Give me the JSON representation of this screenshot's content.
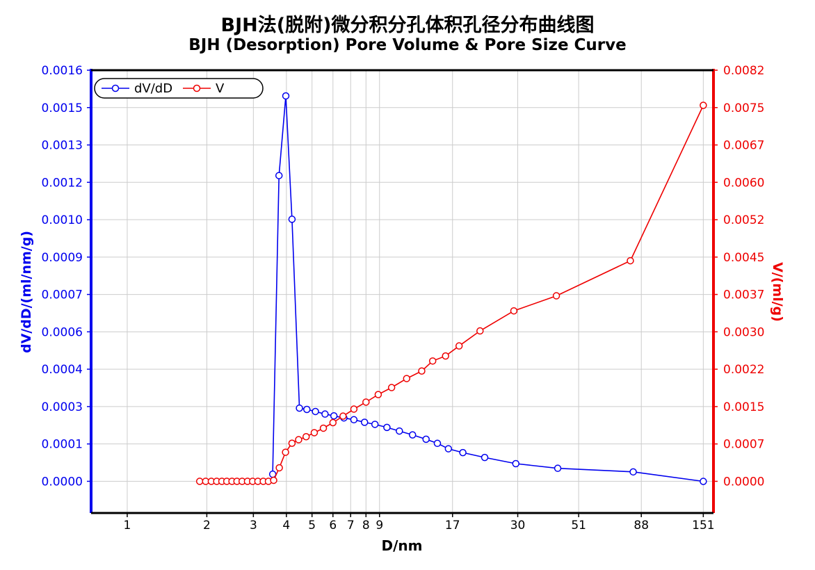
{
  "chart_data": {
    "type": "line",
    "title": "BJH法(脱附)微分积分孔体积孔径分布曲线图",
    "subtitle": "BJH (Desorption) Pore Volume & Pore Size Curve",
    "xlabel": "D/nm",
    "ylabel_left": "dV/dD/(ml/nm/g)",
    "ylabel_right": "V/(ml/g)",
    "x_scale": "log",
    "x_ticks": [
      "1",
      "2",
      "3",
      "4",
      "5",
      "6",
      "7",
      "8",
      "9",
      "17",
      "30",
      "51",
      "88",
      "151"
    ],
    "x_tick_values": [
      1,
      2,
      3,
      4,
      5,
      6,
      7,
      8,
      9,
      17,
      30,
      51,
      88,
      151
    ],
    "xlim": [
      0.73,
      165
    ],
    "y_left_ticks": [
      "0.0000",
      "0.0001",
      "0.0003",
      "0.0004",
      "0.0006",
      "0.0007",
      "0.0009",
      "0.0010",
      "0.0012",
      "0.0013",
      "0.0015",
      "0.0016"
    ],
    "y_left_lim": [
      -0.000123,
      0.0016
    ],
    "y_right_ticks": [
      "0.0000",
      "0.0007",
      "0.0015",
      "0.0022",
      "0.0030",
      "0.0037",
      "0.0045",
      "0.0052",
      "0.0060",
      "0.0067",
      "0.0075",
      "0.0082"
    ],
    "y_right_lim": [
      -0.000632,
      0.0082
    ],
    "grid": true,
    "legend_position": "top-left",
    "colors": {
      "left_axis": "#0000ee",
      "right_axis": "#ee0000",
      "dvdd": "#0000ee",
      "v": "#ee0000",
      "grid": "#cccccc"
    },
    "series": [
      {
        "name": "dV/dD",
        "axis": "left",
        "x": [
          3.55,
          3.75,
          3.98,
          4.2,
          4.48,
          4.78,
          5.15,
          5.6,
          6.05,
          6.6,
          7.2,
          7.9,
          8.65,
          9.6,
          10.7,
          12.0,
          13.5,
          14.9,
          16.4,
          18.6,
          22.5,
          29.5,
          42.5,
          82,
          151
        ],
        "y": [
          2.8e-05,
          0.00119,
          0.0015,
          0.00102,
          0.000285,
          0.00028,
          0.000272,
          0.000262,
          0.000255,
          0.000247,
          0.00024,
          0.00023,
          0.000222,
          0.00021,
          0.000196,
          0.000181,
          0.000164,
          0.000148,
          0.000127,
          0.000112,
          9.3e-05,
          6.9e-05,
          5.1e-05,
          3.7e-05,
          0.0
        ]
      },
      {
        "name": "V",
        "axis": "right",
        "x": [
          1.88,
          1.98,
          2.08,
          2.18,
          2.28,
          2.38,
          2.49,
          2.6,
          2.72,
          2.85,
          2.98,
          3.12,
          3.27,
          3.42,
          3.58,
          3.76,
          3.97,
          4.2,
          4.45,
          4.75,
          5.1,
          5.52,
          6.0,
          6.55,
          7.2,
          8.0,
          8.9,
          10.0,
          11.4,
          13.0,
          14.3,
          16.0,
          18.0,
          21.6,
          29.0,
          42.0,
          80,
          151
        ],
        "y": [
          0.0,
          0.0,
          0.0,
          0.0,
          0.0,
          0.0,
          0.0,
          0.0,
          0.0,
          0.0,
          0.0,
          0.0,
          0.0,
          0.0,
          2e-05,
          0.00027,
          0.00058,
          0.00076,
          0.00083,
          0.00089,
          0.00097,
          0.00106,
          0.00117,
          0.0013,
          0.00144,
          0.00158,
          0.00173,
          0.00187,
          0.00205,
          0.0022,
          0.0024,
          0.0025,
          0.0027,
          0.003,
          0.0034,
          0.0037,
          0.0044,
          0.0075
        ]
      }
    ]
  }
}
